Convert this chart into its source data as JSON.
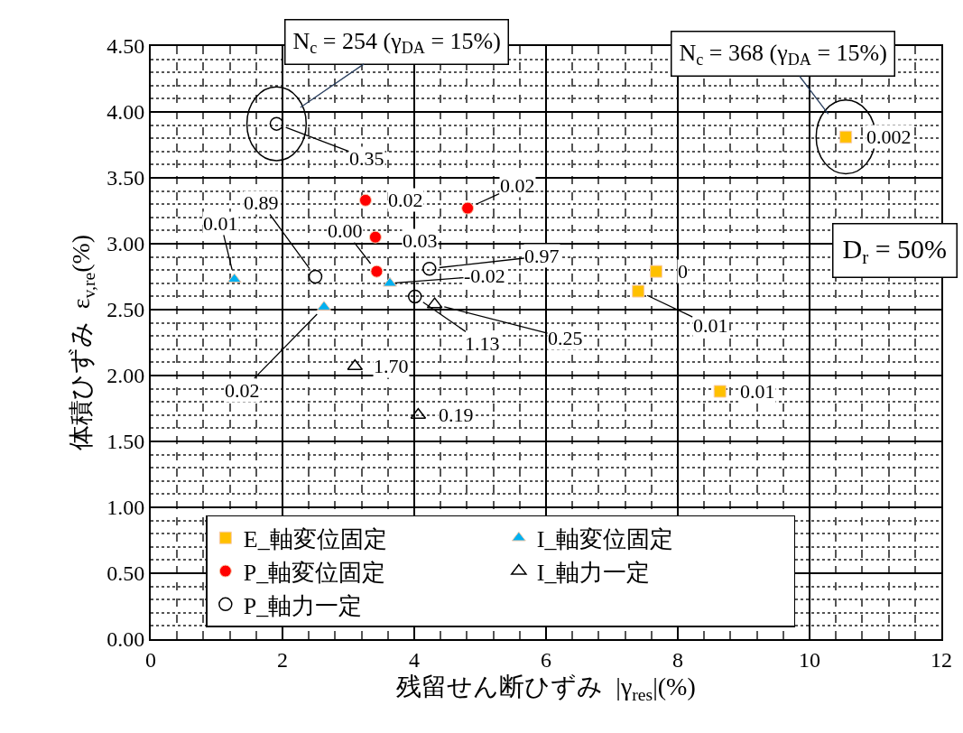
{
  "chart_data": {
    "type": "scatter",
    "xlabel": "残留せん断ひずみ  |γ$_{res}$|(%)",
    "ylabel": "体積ひずみ  ε$_{v,re}$(%)",
    "xlim": [
      0,
      12
    ],
    "xticks": [
      0,
      2,
      4,
      6,
      8,
      10,
      12
    ],
    "ylim": [
      0,
      4.5
    ],
    "yticks": [
      {
        "value": 0,
        "label": "0.00"
      },
      {
        "value": 0.5,
        "label": "0.50"
      },
      {
        "value": 1,
        "label": "1.00"
      },
      {
        "value": 1.5,
        "label": "1.50"
      },
      {
        "value": 2,
        "label": "2.00"
      },
      {
        "value": 2.5,
        "label": "2.50"
      },
      {
        "value": 3,
        "label": "3.00"
      },
      {
        "value": 3.5,
        "label": "3.50"
      },
      {
        "value": 4,
        "label": "4.00"
      },
      {
        "value": 4.5,
        "label": "4.50"
      }
    ],
    "grid": true,
    "legend": "bottom left",
    "series": [
      {
        "name": "E_軸変位固定",
        "color": "#ffc000",
        "marker": "square",
        "x": [
          10.55,
          7.67,
          7.4,
          8.64
        ],
        "values": [
          3.81,
          2.79,
          2.64,
          1.88
        ]
      },
      {
        "name": "I_軸変位固定",
        "color": "#00b0f0",
        "marker": "triangle",
        "x": [
          1.27,
          2.63,
          3.63
        ],
        "values": [
          2.73,
          2.52,
          2.7
        ]
      },
      {
        "name": "P_軸変位固定",
        "color": "#ff0000",
        "marker": "circle",
        "x": [
          3.26,
          3.41,
          3.43,
          4.81
        ],
        "values": [
          3.33,
          3.05,
          2.79,
          3.27
        ]
      },
      {
        "name": "I_軸力一定",
        "color": "#000000",
        "marker": "triangle-open",
        "x": [
          3.1,
          4.06,
          4.31
        ],
        "values": [
          2.07,
          1.7,
          2.54
        ]
      },
      {
        "name": "P_軸力一定",
        "color": "#000000",
        "marker": "circle-open",
        "x": [
          1.91,
          2.5,
          4.23,
          4.01
        ],
        "values": [
          3.91,
          2.75,
          2.81,
          2.6
        ]
      }
    ],
    "annotations": [
      {
        "text": "0.002",
        "x": 10.55,
        "y": 3.81
      },
      {
        "text": "0",
        "x": 7.67,
        "y": 2.79
      },
      {
        "text": "0.01",
        "x": 7.4,
        "y": 2.64
      },
      {
        "text": "0.01",
        "x": 8.64,
        "y": 1.88
      },
      {
        "text": "0.01",
        "x": 1.27,
        "y": 2.73
      },
      {
        "text": "0.02",
        "x": 2.63,
        "y": 2.52
      },
      "-0.02",
      "0.02",
      {
        "text": "0.03",
        "x": 3.41,
        "y": 3.05
      },
      {
        "text": "0.00",
        "x": 3.43,
        "y": 2.79
      },
      {
        "text": "0.02",
        "x": 4.81,
        "y": 3.27
      },
      {
        "text": "1.70",
        "x": 3.1,
        "y": 2.07
      },
      {
        "text": "0.19",
        "x": 4.06,
        "y": 1.7
      },
      {
        "text": "0.25",
        "x": 4.31,
        "y": 2.54
      },
      {
        "text": "0.35",
        "x": 1.91,
        "y": 3.91
      },
      {
        "text": "0.89",
        "x": 2.5,
        "y": 2.75
      },
      {
        "text": "0.97",
        "x": 4.23,
        "y": 2.81
      },
      {
        "text": "1.13",
        "x": 4.01,
        "y": 2.6
      },
      {
        "text": "N$_{c}$ = 254 (γ$_{DA}$ = 15%)",
        "x": 1.91,
        "y": 3.91
      },
      {
        "text": "N$_{c}$ = 368 (γ$_{DA}$ = 15%)",
        "x": 10.55,
        "y": 3.81
      },
      "D$_{r}$ = 50%"
    ]
  }
}
